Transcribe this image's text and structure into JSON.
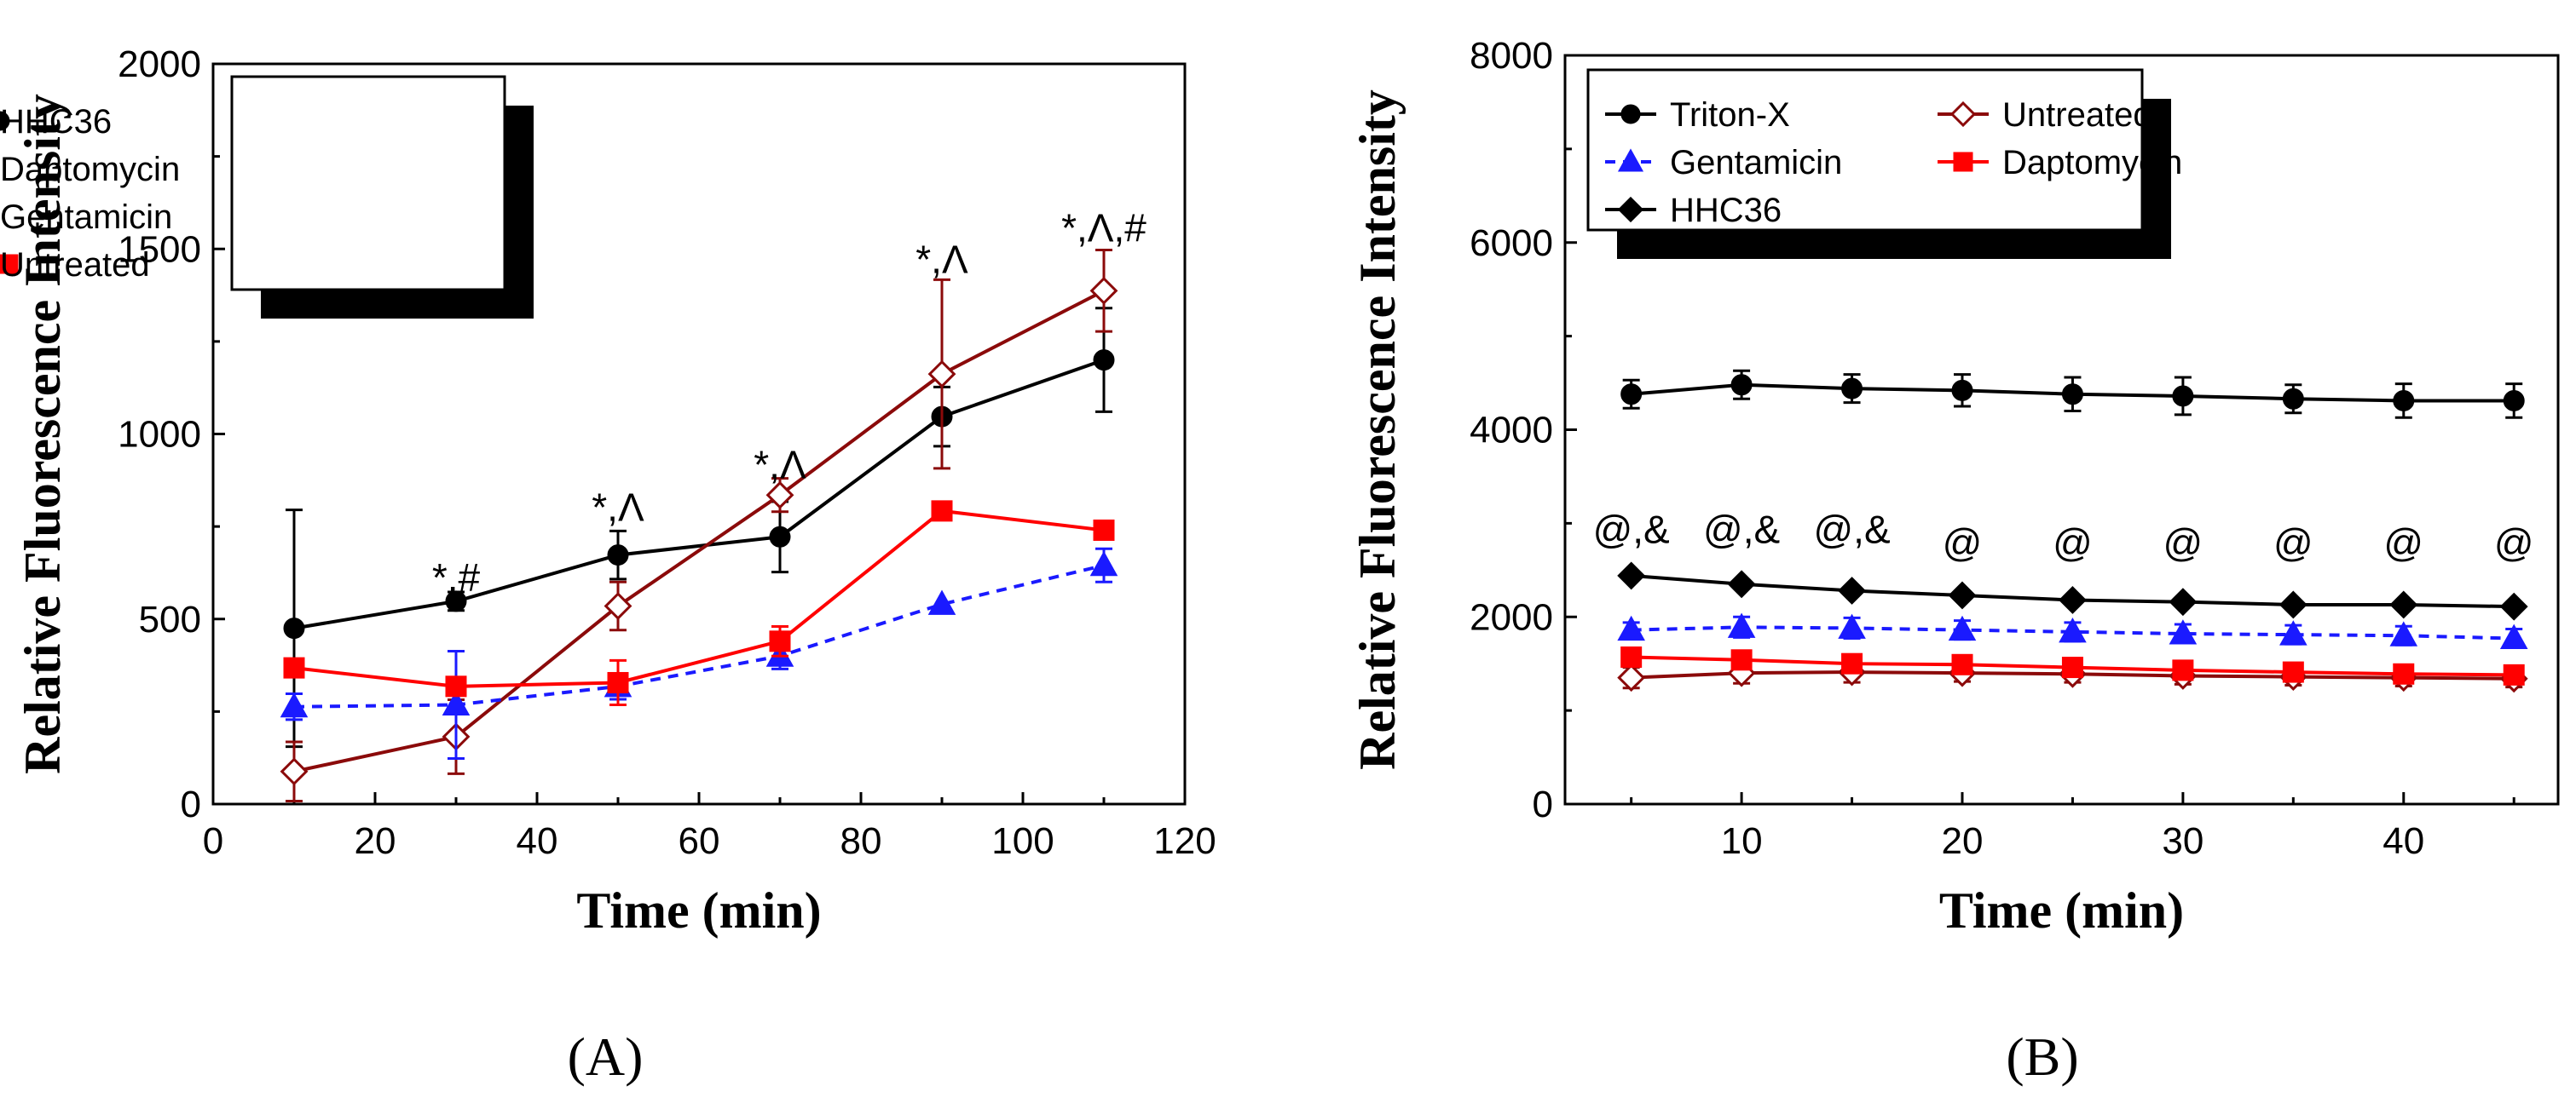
{
  "chart_data": [
    {
      "id": "A",
      "type": "line",
      "panel_label": "(A)",
      "xlabel": "Time (min)",
      "ylabel": "Relative Fluorescence Intensity",
      "xlim": [
        0,
        120
      ],
      "ylim": [
        0,
        2000
      ],
      "xticks": [
        0,
        20,
        40,
        60,
        80,
        100,
        120
      ],
      "yticks": [
        0,
        500,
        1000,
        1500,
        2000
      ],
      "legend_position": "top-left",
      "series": [
        {
          "name": "HHC36",
          "color": "#000000",
          "marker": "circle",
          "filled": true,
          "dashed": false,
          "x": [
            10,
            30,
            50,
            70,
            90,
            110
          ],
          "y": [
            475,
            548,
            673,
            722,
            1047,
            1200
          ],
          "err": [
            320,
            25,
            65,
            95,
            80,
            140
          ]
        },
        {
          "name": "Daptomycin",
          "color": "#8b0a0a",
          "marker": "diamond",
          "filled": false,
          "dashed": false,
          "x": [
            10,
            30,
            50,
            70,
            90,
            110
          ],
          "y": [
            88,
            182,
            535,
            835,
            1162,
            1387
          ],
          "err": [
            80,
            100,
            65,
            45,
            255,
            110
          ]
        },
        {
          "name": "Gentamicin",
          "color": "#1a1aff",
          "marker": "triangle",
          "filled": true,
          "dashed": true,
          "x": [
            10,
            30,
            50,
            70,
            90,
            110
          ],
          "y": [
            263,
            268,
            318,
            400,
            540,
            645
          ],
          "err": [
            35,
            145,
            35,
            35,
            0,
            45
          ]
        },
        {
          "name": "Untreated",
          "color": "#ff0000",
          "marker": "square",
          "filled": true,
          "dashed": false,
          "x": [
            10,
            30,
            50,
            70,
            90,
            110
          ],
          "y": [
            368,
            318,
            328,
            440,
            792,
            740
          ],
          "err": [
            20,
            20,
            60,
            40,
            0,
            0
          ]
        }
      ],
      "annotations": [
        {
          "text": "*,#",
          "x": 30,
          "y": 575
        },
        {
          "text": "*,Λ",
          "x": 50,
          "y": 765
        },
        {
          "text": "*,Λ",
          "x": 70,
          "y": 880
        },
        {
          "text": "*,Λ",
          "x": 90,
          "y": 1435
        },
        {
          "text": "*,Λ,#",
          "x": 110,
          "y": 1520
        }
      ]
    },
    {
      "id": "B",
      "type": "line",
      "panel_label": "(B)",
      "xlabel": "Time (min)",
      "ylabel": "Relative Fluorescence Intensity",
      "xlim": [
        2,
        47
      ],
      "ylim": [
        0,
        8000
      ],
      "xticks": [
        10,
        20,
        30,
        40
      ],
      "yticks": [
        0,
        2000,
        4000,
        6000,
        8000
      ],
      "legend_position": "top-left",
      "series": [
        {
          "name": "Triton-X",
          "color": "#000000",
          "marker": "circle",
          "filled": true,
          "dashed": false,
          "x": [
            5,
            10,
            15,
            20,
            25,
            30,
            35,
            40,
            45
          ],
          "y": [
            4380,
            4480,
            4440,
            4420,
            4380,
            4360,
            4330,
            4310,
            4310
          ],
          "err": [
            150,
            150,
            150,
            170,
            180,
            200,
            150,
            180,
            180
          ]
        },
        {
          "name": "Untreated",
          "color": "#8b0a0a",
          "marker": "diamond",
          "filled": false,
          "dashed": false,
          "x": [
            5,
            10,
            15,
            20,
            25,
            30,
            35,
            40,
            45
          ],
          "y": [
            1350,
            1400,
            1410,
            1400,
            1390,
            1370,
            1360,
            1350,
            1340
          ],
          "err": [
            110,
            110,
            110,
            90,
            90,
            90,
            90,
            90,
            90
          ]
        },
        {
          "name": "Gentamicin",
          "color": "#1a1aff",
          "marker": "triangle",
          "filled": true,
          "dashed": true,
          "x": [
            5,
            10,
            15,
            20,
            25,
            30,
            35,
            40,
            45
          ],
          "y": [
            1860,
            1890,
            1880,
            1860,
            1840,
            1820,
            1810,
            1800,
            1770
          ],
          "err": [
            80,
            110,
            110,
            100,
            100,
            100,
            100,
            100,
            100
          ]
        },
        {
          "name": "Daptomycin",
          "color": "#ff0000",
          "marker": "square",
          "filled": true,
          "dashed": false,
          "x": [
            5,
            10,
            15,
            20,
            25,
            30,
            35,
            40,
            45
          ],
          "y": [
            1570,
            1540,
            1500,
            1490,
            1460,
            1430,
            1410,
            1390,
            1380
          ],
          "err": [
            0,
            0,
            0,
            0,
            0,
            0,
            0,
            0,
            0
          ]
        },
        {
          "name": "HHC36",
          "color": "#000000",
          "marker": "diamond",
          "filled": true,
          "dashed": false,
          "x": [
            5,
            10,
            15,
            20,
            25,
            30,
            35,
            40,
            45
          ],
          "y": [
            2440,
            2350,
            2280,
            2230,
            2180,
            2160,
            2130,
            2130,
            2110
          ],
          "err": [
            0,
            0,
            0,
            0,
            0,
            0,
            0,
            0,
            0
          ]
        }
      ],
      "annotations": [
        {
          "text": "@,&",
          "x": 5,
          "y": 2790
        },
        {
          "text": "@,&",
          "x": 10,
          "y": 2790
        },
        {
          "text": "@,&",
          "x": 15,
          "y": 2790
        },
        {
          "text": "@",
          "x": 20,
          "y": 2650
        },
        {
          "text": "@",
          "x": 25,
          "y": 2650
        },
        {
          "text": "@",
          "x": 30,
          "y": 2650
        },
        {
          "text": "@",
          "x": 35,
          "y": 2650
        },
        {
          "text": "@",
          "x": 40,
          "y": 2650
        },
        {
          "text": "@",
          "x": 45,
          "y": 2650
        }
      ]
    }
  ]
}
